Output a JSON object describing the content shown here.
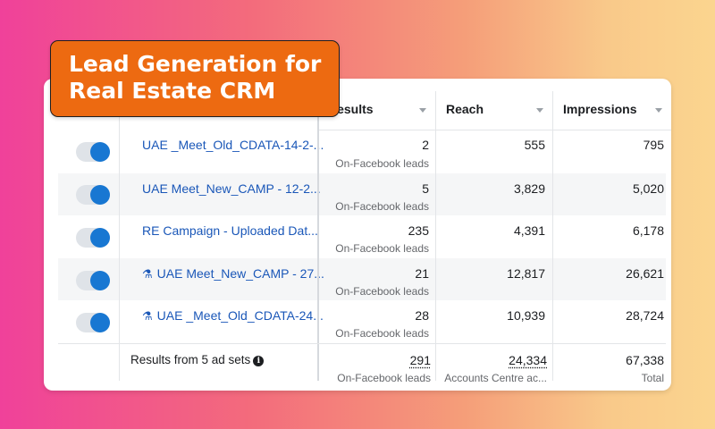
{
  "badge": {
    "line1": "Lead Generation for",
    "line2": "Real Estate CRM"
  },
  "columns": {
    "results": "Results",
    "reach": "Reach",
    "impressions": "Impressions"
  },
  "rows": [
    {
      "name": "UAE _Meet_Old_CDATA-14-2-...",
      "experiment": false,
      "toggle_on": true,
      "results": "2",
      "results_sub": "On-Facebook leads",
      "reach": "555",
      "impressions": "795"
    },
    {
      "name": "UAE Meet_New_CAMP - 12-2...",
      "experiment": false,
      "toggle_on": true,
      "results": "5",
      "results_sub": "On-Facebook leads",
      "reach": "3,829",
      "impressions": "5,020"
    },
    {
      "name": "RE Campaign - Uploaded Dat...",
      "experiment": false,
      "toggle_on": true,
      "results": "235",
      "results_sub": "On-Facebook leads",
      "reach": "4,391",
      "impressions": "6,178"
    },
    {
      "name": "UAE Meet_New_CAMP - 27...",
      "experiment": true,
      "toggle_on": true,
      "results": "21",
      "results_sub": "On-Facebook leads",
      "reach": "12,817",
      "impressions": "26,621"
    },
    {
      "name": "UAE _Meet_Old_CDATA-24...",
      "experiment": true,
      "toggle_on": true,
      "results": "28",
      "results_sub": "On-Facebook leads",
      "reach": "10,939",
      "impressions": "28,724"
    }
  ],
  "footer": {
    "label": "Results from 5 ad sets",
    "results": "291",
    "results_sub": "On-Facebook leads",
    "reach": "24,334",
    "reach_sub": "Accounts Centre ac...",
    "impressions": "67,338",
    "impressions_sub": "Total"
  },
  "colors": {
    "accent_toggle": "#1877d2",
    "link": "#1a57b8",
    "badge": "#ed6a11"
  }
}
